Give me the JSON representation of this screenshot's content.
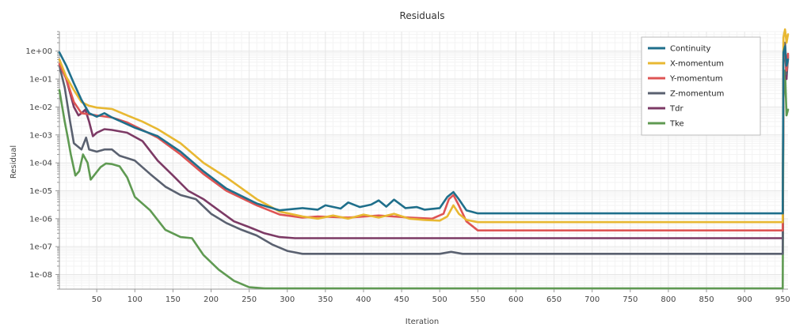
{
  "chart_data": {
    "type": "line",
    "title": "Residuals",
    "xlabel": "Iteration",
    "ylabel": "Residual",
    "xlim": [
      1,
      957
    ],
    "ylim": [
      3e-09,
      5
    ],
    "y_scale": "log",
    "grid": true,
    "legend_position": "top-right",
    "x_ticks": [
      50,
      100,
      150,
      200,
      250,
      300,
      350,
      400,
      450,
      500,
      550,
      600,
      650,
      700,
      750,
      800,
      850,
      900,
      950
    ],
    "x_tick_labels": [
      "50",
      "100",
      "150",
      "200",
      "250",
      "300",
      "350",
      "400",
      "450",
      "500",
      "550",
      "600",
      "650",
      "700",
      "750",
      "800",
      "850",
      "900",
      "950"
    ],
    "y_ticks": [
      1.0,
      0.1,
      0.01,
      0.001,
      0.0001,
      1e-05,
      1e-06,
      1e-07,
      1e-08
    ],
    "y_tick_labels": [
      "1e+00",
      "1e-01",
      "1e-02",
      "1e-03",
      "1e-04",
      "1e-05",
      "1e-06",
      "1e-07",
      "1e-08"
    ],
    "series": [
      {
        "name": "Continuity",
        "color": "#1f6f8b",
        "points": [
          [
            1,
            0.9
          ],
          [
            10,
            0.3
          ],
          [
            20,
            0.07
          ],
          [
            30,
            0.018
          ],
          [
            40,
            0.006
          ],
          [
            50,
            0.0045
          ],
          [
            60,
            0.006
          ],
          [
            70,
            0.0042
          ],
          [
            80,
            0.0032
          ],
          [
            100,
            0.0018
          ],
          [
            130,
            0.0009
          ],
          [
            160,
            0.00025
          ],
          [
            190,
            5e-05
          ],
          [
            220,
            1.2e-05
          ],
          [
            260,
            3.5e-06
          ],
          [
            290,
            2e-06
          ],
          [
            320,
            2.4e-06
          ],
          [
            340,
            2.1e-06
          ],
          [
            350,
            3e-06
          ],
          [
            370,
            2.3e-06
          ],
          [
            380,
            3.8e-06
          ],
          [
            395,
            2.6e-06
          ],
          [
            410,
            3.2e-06
          ],
          [
            420,
            4.5e-06
          ],
          [
            430,
            2.7e-06
          ],
          [
            440,
            4.8e-06
          ],
          [
            455,
            2.4e-06
          ],
          [
            470,
            2.6e-06
          ],
          [
            480,
            2.1e-06
          ],
          [
            500,
            2.4e-06
          ],
          [
            510,
            6e-06
          ],
          [
            518,
            9e-06
          ],
          [
            525,
            5e-06
          ],
          [
            535,
            2e-06
          ],
          [
            550,
            1.55e-06
          ],
          [
            950,
            1.55e-06
          ],
          [
            951,
            0.9
          ],
          [
            953,
            1.5
          ],
          [
            955,
            0.3
          ],
          [
            957,
            0.5
          ]
        ]
      },
      {
        "name": "X-momentum",
        "color": "#e8b832",
        "points": [
          [
            1,
            0.5
          ],
          [
            10,
            0.12
          ],
          [
            20,
            0.04
          ],
          [
            30,
            0.015
          ],
          [
            40,
            0.011
          ],
          [
            50,
            0.0095
          ],
          [
            70,
            0.0085
          ],
          [
            90,
            0.005
          ],
          [
            110,
            0.003
          ],
          [
            130,
            0.0016
          ],
          [
            160,
            0.0005
          ],
          [
            190,
            0.0001
          ],
          [
            220,
            3e-05
          ],
          [
            260,
            5e-06
          ],
          [
            290,
            1.8e-06
          ],
          [
            320,
            1.2e-06
          ],
          [
            340,
            1e-06
          ],
          [
            360,
            1.3e-06
          ],
          [
            380,
            1e-06
          ],
          [
            400,
            1.4e-06
          ],
          [
            420,
            1.1e-06
          ],
          [
            440,
            1.5e-06
          ],
          [
            460,
            1e-06
          ],
          [
            480,
            9e-07
          ],
          [
            500,
            8.5e-07
          ],
          [
            510,
            1.2e-06
          ],
          [
            518,
            3e-06
          ],
          [
            525,
            1.5e-06
          ],
          [
            535,
            9e-07
          ],
          [
            550,
            7.5e-07
          ],
          [
            950,
            7.5e-07
          ],
          [
            951,
            3
          ],
          [
            953,
            6
          ],
          [
            955,
            2
          ],
          [
            957,
            4
          ]
        ]
      },
      {
        "name": "Y-momentum",
        "color": "#de5454",
        "points": [
          [
            1,
            0.35
          ],
          [
            10,
            0.1
          ],
          [
            20,
            0.015
          ],
          [
            30,
            0.006
          ],
          [
            40,
            0.0055
          ],
          [
            50,
            0.005
          ],
          [
            70,
            0.0042
          ],
          [
            90,
            0.0028
          ],
          [
            110,
            0.0015
          ],
          [
            130,
            0.0008
          ],
          [
            160,
            0.0002
          ],
          [
            190,
            4e-05
          ],
          [
            220,
            1e-05
          ],
          [
            260,
            3e-06
          ],
          [
            290,
            1.4e-06
          ],
          [
            320,
            1.1e-06
          ],
          [
            340,
            1.2e-06
          ],
          [
            380,
            1.1e-06
          ],
          [
            420,
            1.3e-06
          ],
          [
            460,
            1.1e-06
          ],
          [
            490,
            1e-06
          ],
          [
            505,
            1.5e-06
          ],
          [
            512,
            5e-06
          ],
          [
            518,
            7e-06
          ],
          [
            525,
            3e-06
          ],
          [
            535,
            8e-07
          ],
          [
            550,
            3.8e-07
          ],
          [
            950,
            3.8e-07
          ],
          [
            951,
            0.5
          ],
          [
            953,
            1.2
          ],
          [
            955,
            0.2
          ],
          [
            957,
            0.8
          ]
        ]
      },
      {
        "name": "Z-momentum",
        "color": "#5a6170",
        "points": [
          [
            1,
            0.3
          ],
          [
            8,
            0.05
          ],
          [
            15,
            0.003
          ],
          [
            20,
            0.0005
          ],
          [
            30,
            0.0003
          ],
          [
            36,
            0.0008
          ],
          [
            40,
            0.0003
          ],
          [
            50,
            0.00025
          ],
          [
            60,
            0.0003
          ],
          [
            70,
            0.0003
          ],
          [
            80,
            0.00018
          ],
          [
            100,
            0.00012
          ],
          [
            120,
            4e-05
          ],
          [
            140,
            1.4e-05
          ],
          [
            160,
            7e-06
          ],
          [
            180,
            5e-06
          ],
          [
            200,
            1.5e-06
          ],
          [
            220,
            7e-07
          ],
          [
            240,
            4e-07
          ],
          [
            260,
            2.5e-07
          ],
          [
            280,
            1.2e-07
          ],
          [
            300,
            7e-08
          ],
          [
            320,
            5.5e-08
          ],
          [
            500,
            5.5e-08
          ],
          [
            515,
            6.5e-08
          ],
          [
            530,
            5.5e-08
          ],
          [
            950,
            5.5e-08
          ],
          [
            951,
            0.3
          ],
          [
            953,
            2
          ],
          [
            955,
            0.15
          ],
          [
            957,
            0.6
          ]
        ]
      },
      {
        "name": "Tdr",
        "color": "#7c3a65",
        "points": [
          [
            1,
            0.5
          ],
          [
            10,
            0.1
          ],
          [
            20,
            0.01
          ],
          [
            26,
            0.005
          ],
          [
            30,
            0.006
          ],
          [
            35,
            0.008
          ],
          [
            40,
            0.003
          ],
          [
            45,
            0.0009
          ],
          [
            50,
            0.0012
          ],
          [
            60,
            0.0016
          ],
          [
            70,
            0.0015
          ],
          [
            90,
            0.0012
          ],
          [
            110,
            0.0006
          ],
          [
            130,
            0.00012
          ],
          [
            150,
            3.5e-05
          ],
          [
            170,
            1e-05
          ],
          [
            190,
            5e-06
          ],
          [
            210,
            2e-06
          ],
          [
            230,
            8e-07
          ],
          [
            250,
            5e-07
          ],
          [
            270,
            3e-07
          ],
          [
            290,
            2.2e-07
          ],
          [
            310,
            2e-07
          ],
          [
            950,
            2e-07
          ],
          [
            951,
            0.4
          ],
          [
            953,
            1.8
          ],
          [
            955,
            0.1
          ],
          [
            957,
            0.7
          ]
        ]
      },
      {
        "name": "Tke",
        "color": "#5f9a52",
        "points": [
          [
            1,
            0.04
          ],
          [
            8,
            0.003
          ],
          [
            12,
            0.0008
          ],
          [
            16,
            0.0002
          ],
          [
            22,
            3.5e-05
          ],
          [
            27,
            5e-05
          ],
          [
            32,
            0.0002
          ],
          [
            38,
            0.0001
          ],
          [
            42,
            2.5e-05
          ],
          [
            48,
            4e-05
          ],
          [
            55,
            7e-05
          ],
          [
            62,
            9.5e-05
          ],
          [
            70,
            9e-05
          ],
          [
            80,
            7.5e-05
          ],
          [
            90,
            3e-05
          ],
          [
            100,
            6e-06
          ],
          [
            120,
            2e-06
          ],
          [
            140,
            4e-07
          ],
          [
            160,
            2.2e-07
          ],
          [
            175,
            2e-07
          ],
          [
            190,
            5e-08
          ],
          [
            210,
            1.5e-08
          ],
          [
            230,
            6e-09
          ],
          [
            250,
            3.5e-09
          ],
          [
            270,
            3.2e-09
          ],
          [
            950,
            3.2e-09
          ],
          [
            951,
            0.02
          ],
          [
            953,
            0.2
          ],
          [
            955,
            0.005
          ],
          [
            957,
            0.008
          ]
        ]
      }
    ]
  }
}
